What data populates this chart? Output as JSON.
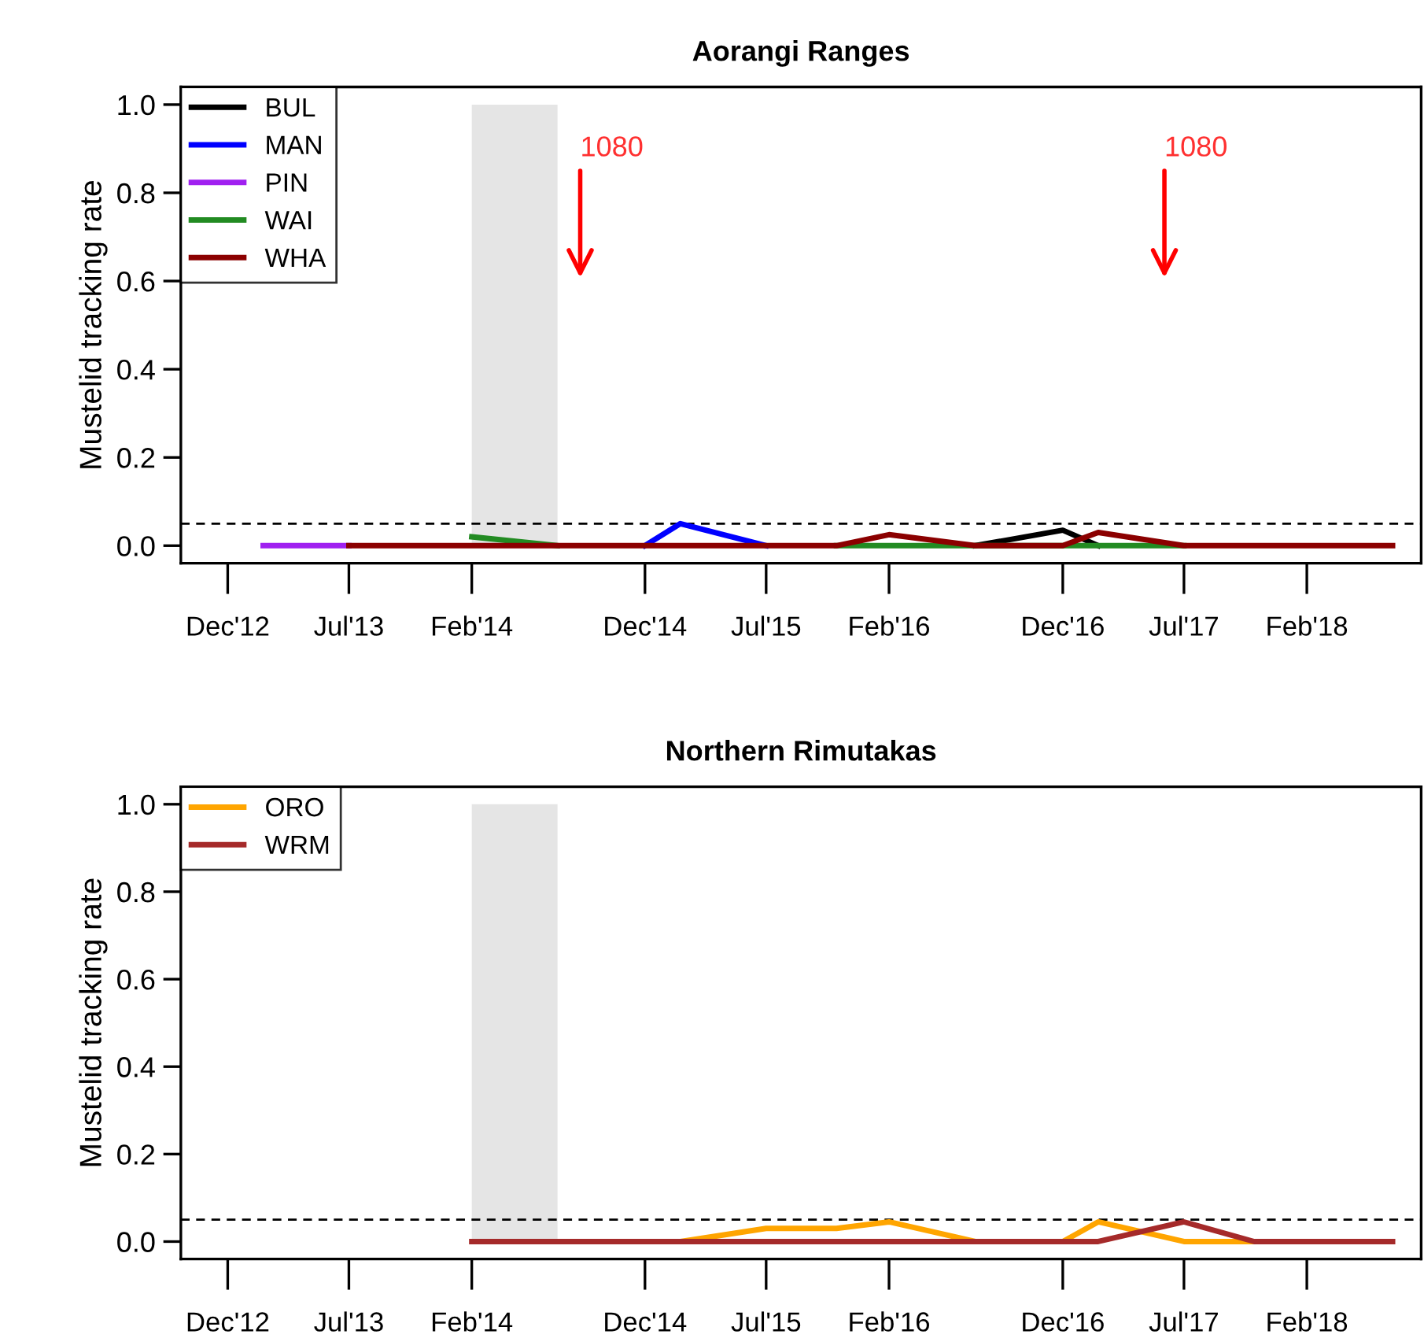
{
  "chart_data": [
    {
      "type": "line",
      "title": "Aorangi Ranges",
      "ylabel": "Mustelid tracking rate",
      "x": [
        "2013-02",
        "2013-07",
        "2013-12",
        "2014-02",
        "2014-07",
        "2014-12",
        "2015-02",
        "2015-07",
        "2015-11",
        "2016-02",
        "2016-07",
        "2016-12",
        "2017-02",
        "2017-07",
        "2017-11",
        "2018-02",
        "2018-07"
      ],
      "series": [
        {
          "name": "BUL",
          "color": "#000000",
          "values": [
            null,
            null,
            null,
            null,
            null,
            null,
            null,
            null,
            null,
            null,
            0,
            0.035,
            0,
            null,
            null,
            null,
            null
          ]
        },
        {
          "name": "MAN",
          "color": "#0000ff",
          "values": [
            null,
            null,
            null,
            null,
            null,
            0,
            0.05,
            0,
            null,
            null,
            null,
            null,
            null,
            null,
            null,
            null,
            null
          ]
        },
        {
          "name": "PIN",
          "color": "#a020f0",
          "values": [
            0,
            0,
            null,
            null,
            null,
            null,
            null,
            null,
            null,
            null,
            null,
            null,
            null,
            null,
            null,
            null,
            null
          ]
        },
        {
          "name": "WAI",
          "color": "#228b22",
          "values": [
            null,
            null,
            null,
            0.02,
            0,
            null,
            null,
            null,
            0,
            0,
            0,
            0,
            0,
            0,
            null,
            null,
            null
          ]
        },
        {
          "name": "WHA",
          "color": "#8b0000",
          "values": [
            null,
            0,
            0,
            0,
            0,
            0,
            0,
            0,
            0,
            0.025,
            0,
            0,
            0.03,
            0,
            0,
            0,
            0
          ]
        }
      ],
      "xlim": [
        "2012-09-10",
        "2018-08-20"
      ],
      "ylim": [
        -0.04,
        1.04
      ],
      "xticks": [
        {
          "value": "2012-12",
          "label": "Dec'12"
        },
        {
          "value": "2013-07",
          "label": "Jul'13"
        },
        {
          "value": "2014-02",
          "label": "Feb'14"
        },
        {
          "value": "2014-12",
          "label": "Dec'14"
        },
        {
          "value": "2015-07",
          "label": "Jul'15"
        },
        {
          "value": "2016-02",
          "label": "Feb'16"
        },
        {
          "value": "2016-12",
          "label": "Dec'16"
        },
        {
          "value": "2017-07",
          "label": "Jul'17"
        },
        {
          "value": "2018-02",
          "label": "Feb'18"
        }
      ],
      "yticks": [
        {
          "value": 0,
          "label": "0.0"
        },
        {
          "value": 0.2,
          "label": "0.2"
        },
        {
          "value": 0.4,
          "label": "0.4"
        },
        {
          "value": 0.6,
          "label": "0.6"
        },
        {
          "value": 0.8,
          "label": "0.8"
        },
        {
          "value": 1,
          "label": "1.0"
        }
      ],
      "ref_lines": [
        {
          "axis": "y",
          "value": 0.05,
          "color": "#000000",
          "line_style": "dashed"
        }
      ],
      "bands": [
        {
          "axis": "x",
          "from": "2014-02",
          "to": "2014-07",
          "color": "#e5e5e5"
        }
      ],
      "annotations": [
        "1080",
        "1080"
      ],
      "legend": "top left",
      "grid": false,
      "marker": "none",
      "line_style": "solid"
    },
    {
      "type": "line",
      "title": "Northern Rimutakas",
      "ylabel": "Mustelid tracking rate",
      "series": [
        {
          "name": "ORO",
          "color": "#ffa500",
          "x": [
            "2014-12",
            "2015-02",
            "2015-07",
            "2015-11",
            "2016-02",
            "2016-07",
            "2016-12",
            "2017-02",
            "2017-07",
            "2017-11"
          ],
          "values": [
            0,
            0,
            0.03,
            0.03,
            0.045,
            0,
            0,
            0.045,
            0,
            0
          ]
        },
        {
          "name": "WRM",
          "color": "#a52a2a",
          "x": [
            "2014-02",
            "2014-07",
            "2014-12",
            "2015-02",
            "2015-07",
            "2015-11",
            "2016-02",
            "2016-07",
            "2016-12",
            "2017-02",
            "2017-07",
            "2017-11",
            "2018-02",
            "2018-07"
          ],
          "values": [
            0,
            0,
            0,
            0,
            0,
            0,
            0,
            0,
            0,
            0,
            0.045,
            0,
            0,
            0
          ]
        }
      ],
      "xlim": [
        "2012-09-10",
        "2018-08-20"
      ],
      "ylim": [
        -0.04,
        1.04
      ],
      "xticks": [
        {
          "value": "2012-12",
          "label": "Dec'12"
        },
        {
          "value": "2013-07",
          "label": "Jul'13"
        },
        {
          "value": "2014-02",
          "label": "Feb'14"
        },
        {
          "value": "2014-12",
          "label": "Dec'14"
        },
        {
          "value": "2015-07",
          "label": "Jul'15"
        },
        {
          "value": "2016-02",
          "label": "Feb'16"
        },
        {
          "value": "2016-12",
          "label": "Dec'16"
        },
        {
          "value": "2017-07",
          "label": "Jul'17"
        },
        {
          "value": "2018-02",
          "label": "Feb'18"
        }
      ],
      "yticks": [
        {
          "value": 0,
          "label": "0.0"
        },
        {
          "value": 0.2,
          "label": "0.2"
        },
        {
          "value": 0.4,
          "label": "0.4"
        },
        {
          "value": 0.6,
          "label": "0.6"
        },
        {
          "value": 0.8,
          "label": "0.8"
        },
        {
          "value": 1,
          "label": "1.0"
        }
      ],
      "ref_lines": [
        {
          "axis": "y",
          "value": 0.05,
          "color": "#000000",
          "line_style": "dashed"
        }
      ],
      "bands": [
        {
          "axis": "x",
          "from": "2014-02",
          "to": "2014-07",
          "color": "#e5e5e5"
        }
      ],
      "legend": "top left",
      "grid": false,
      "marker": "none",
      "line_style": "solid"
    }
  ]
}
